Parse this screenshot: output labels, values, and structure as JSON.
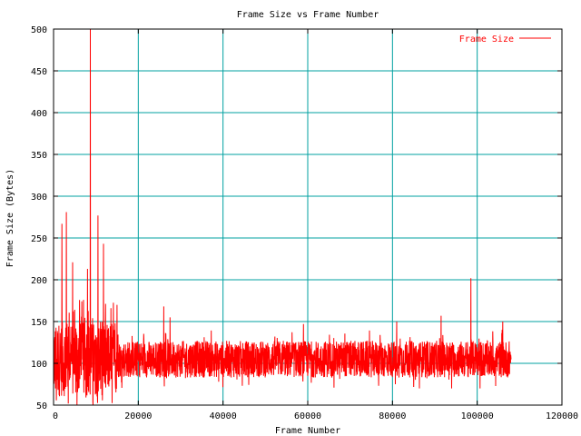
{
  "chart_data": {
    "type": "line",
    "title": "Frame Size vs Frame Number",
    "xlabel": "Frame Number",
    "ylabel": "Frame Size (Bytes)",
    "xlim": [
      0,
      120000
    ],
    "ylim": [
      50,
      500
    ],
    "x_ticks": [
      0,
      20000,
      40000,
      60000,
      80000,
      100000,
      120000
    ],
    "y_ticks": [
      50,
      100,
      150,
      200,
      250,
      300,
      350,
      400,
      450,
      500
    ],
    "x_tick_labels": [
      "0",
      "20000",
      "40000",
      "60000",
      "80000",
      "100000",
      "120000"
    ],
    "y_tick_labels": [
      "50",
      "100",
      "150",
      "200",
      "250",
      "300",
      "350",
      "400",
      "450",
      "500"
    ],
    "grid": true,
    "legend_position": "top-right",
    "series": [
      {
        "name": "Frame Size",
        "color": "#ff0000",
        "x_range": [
          0,
          108000
        ],
        "baseline": 105,
        "typical_band": [
          80,
          130
        ],
        "peaks": [
          {
            "x": 2000,
            "y": 267
          },
          {
            "x": 3000,
            "y": 281
          },
          {
            "x": 4500,
            "y": 221
          },
          {
            "x": 8000,
            "y": 213
          },
          {
            "x": 8700,
            "y": 500
          },
          {
            "x": 10500,
            "y": 277
          },
          {
            "x": 11800,
            "y": 243
          },
          {
            "x": 15000,
            "y": 170
          },
          {
            "x": 26000,
            "y": 168
          },
          {
            "x": 27500,
            "y": 155
          },
          {
            "x": 59000,
            "y": 147
          },
          {
            "x": 81000,
            "y": 150
          },
          {
            "x": 91500,
            "y": 157
          },
          {
            "x": 98500,
            "y": 202
          },
          {
            "x": 106000,
            "y": 150
          }
        ]
      }
    ]
  }
}
